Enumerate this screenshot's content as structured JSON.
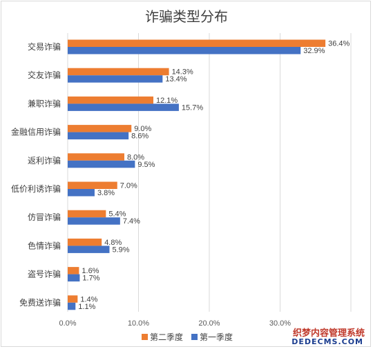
{
  "chart_data": {
    "type": "bar",
    "orientation": "horizontal",
    "title": "诈骗类型分布",
    "categories": [
      "交易诈骗",
      "交友诈骗",
      "兼职诈骗",
      "金融信用诈骗",
      "返利诈骗",
      "低价利诱诈骗",
      "仿冒诈骗",
      "色情诈骗",
      "盗号诈骗",
      "免费送诈骗"
    ],
    "series": [
      {
        "name": "第二季度",
        "color": "#ed7d31",
        "values": [
          36.4,
          14.3,
          12.1,
          9.0,
          8.0,
          7.0,
          5.4,
          4.8,
          1.6,
          1.4
        ],
        "labels": [
          "36.4%",
          "14.3%",
          "12.1%",
          "9.0%",
          "8.0%",
          "7.0%",
          "5.4%",
          "4.8%",
          "1.6%",
          "1.4%"
        ]
      },
      {
        "name": "第一季度",
        "color": "#4472c4",
        "values": [
          32.9,
          13.4,
          15.7,
          8.6,
          9.5,
          3.8,
          7.4,
          5.9,
          1.7,
          1.1
        ],
        "labels": [
          "32.9%",
          "13.4%",
          "15.7%",
          "8.6%",
          "9.5%",
          "3.8%",
          "7.4%",
          "5.9%",
          "1.7%",
          "1.1%"
        ]
      }
    ],
    "x_ticks": [
      "0.0%",
      "10.0%",
      "20.0%",
      "30.0%"
    ],
    "xlim": [
      0,
      40
    ],
    "grid": true,
    "legend_position": "bottom"
  },
  "watermark": {
    "line1": "织梦内容管理系统",
    "line2": "DEDECMS.COM"
  }
}
